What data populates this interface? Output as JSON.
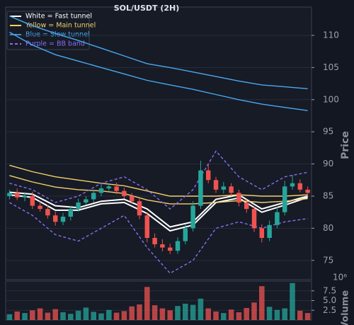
{
  "chart_data": {
    "type": "candlestick",
    "title": "SOL/USDT (2H)",
    "y_label": "Price",
    "volume_label": "Volume",
    "volume_exponent": "10⁶",
    "up_color": "#26a69a",
    "down_color": "#ef5350",
    "grid": true,
    "legend": "upper left",
    "ylim": [
      72,
      114.4
    ],
    "yticks": [
      75,
      80,
      85,
      90,
      95,
      100,
      105,
      110
    ],
    "volume_ylim": [
      0,
      10
    ],
    "volume_ticks": [
      2.5,
      {
        "value": 5,
        "label": "5.0"
      },
      7.5
    ],
    "open": [
      85.0,
      85.5,
      84.8,
      85.0,
      83.5,
      83.0,
      82.0,
      81.0,
      81.8,
      83.0,
      84.0,
      84.5,
      85.5,
      86.2,
      86.5,
      85.8,
      85.0,
      84.2,
      82.0,
      78.5,
      77.5,
      77.0,
      76.5,
      78.0,
      80.0,
      83.5,
      89.0,
      87.5,
      86.0,
      86.5,
      85.5,
      84.0,
      83.0,
      80.0,
      78.5,
      80.5,
      82.5,
      86.5,
      87.0,
      86.0
    ],
    "high": [
      86.0,
      86.2,
      85.6,
      85.7,
      84.2,
      83.6,
      82.6,
      82.4,
      83.5,
      84.6,
      85.0,
      86.0,
      86.9,
      87.0,
      87.1,
      86.3,
      85.5,
      84.6,
      82.5,
      79.2,
      78.3,
      77.6,
      78.6,
      80.6,
      84.2,
      90.5,
      90.0,
      88.0,
      87.2,
      87.0,
      86.0,
      84.5,
      83.4,
      80.6,
      81.2,
      83.3,
      87.4,
      88.3,
      87.6,
      86.5
    ],
    "low": [
      84.5,
      84.4,
      84.2,
      83.0,
      82.6,
      81.5,
      80.4,
      80.5,
      81.2,
      82.6,
      83.6,
      84.0,
      85.0,
      85.8,
      85.3,
      84.6,
      83.8,
      81.4,
      77.8,
      77.0,
      76.4,
      76.0,
      76.0,
      77.5,
      79.5,
      83.0,
      87.0,
      85.5,
      85.4,
      85.0,
      83.4,
      82.4,
      79.4,
      77.8,
      78.0,
      80.0,
      82.0,
      86.0,
      85.6,
      85.0
    ],
    "close": [
      85.5,
      84.8,
      85.0,
      83.5,
      83.0,
      82.0,
      81.0,
      81.8,
      83.0,
      84.0,
      84.5,
      85.5,
      86.2,
      86.5,
      85.8,
      85.0,
      84.2,
      82.0,
      78.5,
      77.5,
      77.0,
      76.5,
      78.0,
      80.0,
      83.5,
      89.0,
      87.5,
      86.0,
      86.5,
      85.5,
      84.0,
      83.0,
      80.0,
      78.5,
      80.5,
      82.5,
      86.5,
      87.0,
      86.0,
      85.5
    ],
    "volume": [
      1.5,
      2.2,
      1.8,
      2.5,
      3.0,
      1.9,
      2.8,
      2.0,
      1.6,
      2.4,
      3.2,
      2.1,
      1.7,
      2.6,
      1.9,
      2.3,
      3.5,
      4.0,
      8.5,
      3.8,
      3.0,
      2.5,
      3.6,
      4.2,
      3.9,
      5.5,
      3.0,
      2.2,
      1.8,
      2.7,
      2.0,
      3.1,
      4.5,
      8.7,
      3.4,
      2.6,
      3.0,
      9.5,
      2.4,
      1.8
    ],
    "line_x": [
      0,
      3,
      6,
      9,
      12,
      15,
      18,
      21,
      24,
      27,
      30,
      33,
      36,
      39
    ],
    "overlays": [
      {
        "name": "White = Fast tunnel",
        "color": "#ffffff",
        "dashed": false,
        "lines": [
          [
            85.6,
            85.3,
            83.5,
            83.2,
            84.2,
            84.5,
            83.0,
            80.2,
            81.0,
            84.5,
            85.2,
            83.0,
            84.0,
            85.0
          ],
          [
            85.2,
            84.8,
            82.8,
            82.8,
            83.8,
            84.0,
            82.3,
            79.6,
            80.5,
            84.0,
            84.7,
            82.5,
            83.6,
            84.8
          ]
        ]
      },
      {
        "name": "Yellow = Main tunnel",
        "color": "#f5d06a",
        "dashed": false,
        "lines": [
          [
            89.8,
            88.8,
            88.0,
            87.5,
            87.0,
            86.6,
            85.8,
            85.0,
            85.0,
            85.0,
            85.2,
            85.0,
            85.0,
            85.2
          ],
          [
            88.2,
            87.2,
            86.4,
            86.0,
            85.8,
            85.4,
            84.4,
            83.8,
            83.8,
            84.0,
            84.3,
            84.0,
            84.2,
            84.6
          ]
        ]
      },
      {
        "name": "Blue = Slow tunnel",
        "color": "#4aa8f0",
        "dashed": false,
        "lines": [
          [
            113,
            111.5,
            110.3,
            109.2,
            108,
            106.8,
            105.6,
            105,
            104.3,
            103.6,
            102.9,
            102.3,
            102,
            101.7
          ],
          [
            110.5,
            108.5,
            107,
            106,
            105,
            104,
            103,
            102.3,
            101.6,
            100.8,
            100,
            99.3,
            98.8,
            98.3
          ]
        ]
      },
      {
        "name": "Purple = BB band",
        "color": "#8e6cf0",
        "dashed": true,
        "lines": [
          [
            87,
            86,
            84,
            85,
            87,
            88,
            86,
            83,
            86,
            92,
            88,
            86,
            88,
            88.7
          ],
          [
            84,
            82,
            79,
            78,
            80,
            82,
            77,
            73,
            75,
            80,
            81,
            80,
            81,
            81.5
          ]
        ]
      }
    ]
  }
}
